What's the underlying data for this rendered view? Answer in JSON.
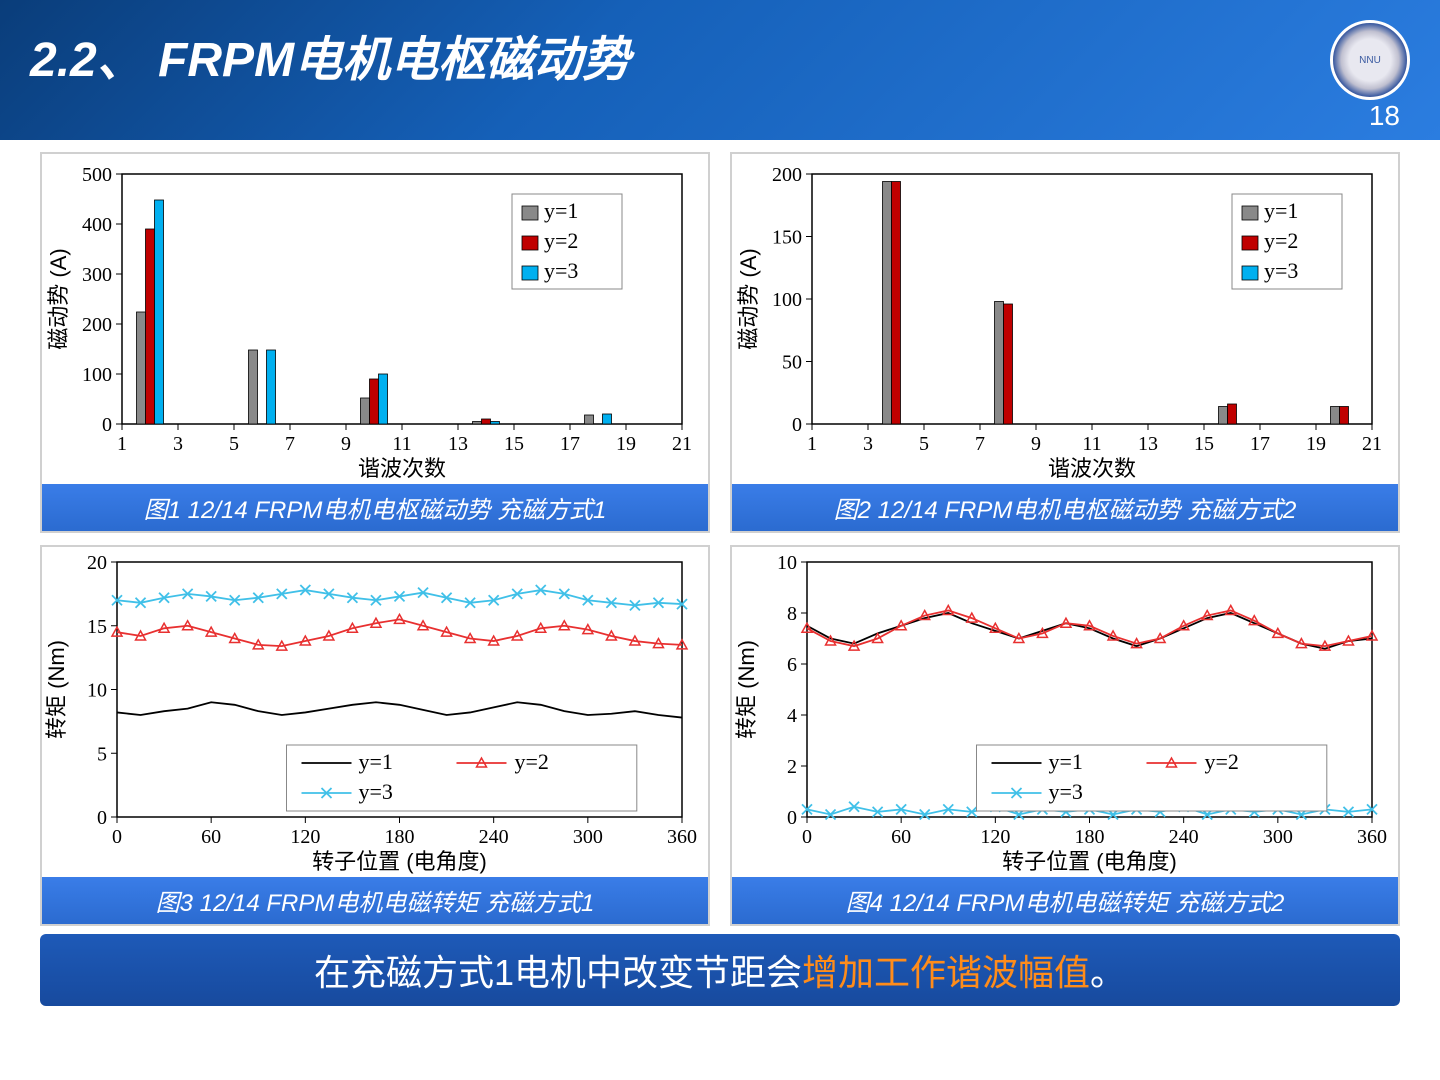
{
  "header": {
    "title": "2.2、 FRPM电机电枢磁动势",
    "pagenum": "18",
    "logo_text": "NNU"
  },
  "colors": {
    "gray": "#898989",
    "red": "#c00000",
    "blue": "#00b0f0",
    "line_black": "#000000",
    "line_red": "#e83030",
    "line_blue": "#40c0e8",
    "grid": "#000000",
    "bg": "#ffffff"
  },
  "chart1": {
    "type": "bar",
    "caption": "图1  12/14 FRPM电机电枢磁动势 充磁方式1",
    "ylabel": "磁动势 (A)",
    "xlabel": "谐波次数",
    "ylim": [
      0,
      500
    ],
    "ytick_step": 100,
    "xticks": [
      1,
      3,
      5,
      7,
      9,
      11,
      13,
      15,
      17,
      19,
      21
    ],
    "series": [
      "y=1",
      "y=2",
      "y=3"
    ],
    "categories": [
      2,
      6,
      10,
      14,
      18
    ],
    "values": {
      "y=1": [
        224,
        148,
        52,
        5,
        18
      ],
      "y=2": [
        390,
        0,
        90,
        10,
        0
      ],
      "y=3": [
        448,
        148,
        100,
        5,
        20
      ]
    }
  },
  "chart2": {
    "type": "bar",
    "caption": "图2  12/14 FRPM电机电枢磁动势 充磁方式2",
    "ylabel": "磁动势 (A)",
    "xlabel": "谐波次数",
    "ylim": [
      0,
      200
    ],
    "ytick_step": 50,
    "xticks": [
      1,
      3,
      5,
      7,
      9,
      11,
      13,
      15,
      17,
      19,
      21
    ],
    "series": [
      "y=1",
      "y=2",
      "y=3"
    ],
    "categories": [
      4,
      8,
      16,
      20
    ],
    "values": {
      "y=1": [
        194,
        98,
        14,
        14
      ],
      "y=2": [
        194,
        96,
        16,
        14
      ],
      "y=3": [
        0,
        0,
        0,
        0
      ]
    }
  },
  "chart3": {
    "type": "line",
    "caption": "图3  12/14 FRPM电机电磁转矩 充磁方式1",
    "ylabel": "转矩 (Nm)",
    "xlabel": "转子位置 (电角度)",
    "ylim": [
      0,
      20
    ],
    "ytick_step": 5,
    "xlim": [
      0,
      360
    ],
    "xtick_step": 60,
    "series": [
      "y=1",
      "y=2",
      "y=3"
    ],
    "x": [
      0,
      15,
      30,
      45,
      60,
      75,
      90,
      105,
      120,
      135,
      150,
      165,
      180,
      195,
      210,
      225,
      240,
      255,
      270,
      285,
      300,
      315,
      330,
      345,
      360
    ],
    "y": {
      "y=1": [
        8.2,
        8.0,
        8.3,
        8.5,
        9.0,
        8.8,
        8.3,
        8.0,
        8.2,
        8.5,
        8.8,
        9.0,
        8.8,
        8.4,
        8.0,
        8.2,
        8.6,
        9.0,
        8.8,
        8.3,
        8.0,
        8.1,
        8.3,
        8.0,
        7.8
      ],
      "y=2": [
        14.5,
        14.2,
        14.8,
        15.0,
        14.5,
        14.0,
        13.5,
        13.4,
        13.8,
        14.2,
        14.8,
        15.2,
        15.5,
        15.0,
        14.5,
        14.0,
        13.8,
        14.2,
        14.8,
        15.0,
        14.7,
        14.2,
        13.8,
        13.6,
        13.5
      ],
      "y=3": [
        17.0,
        16.8,
        17.2,
        17.5,
        17.3,
        17.0,
        17.2,
        17.5,
        17.8,
        17.5,
        17.2,
        17.0,
        17.3,
        17.6,
        17.2,
        16.8,
        17.0,
        17.5,
        17.8,
        17.5,
        17.0,
        16.8,
        16.6,
        16.8,
        16.7
      ]
    }
  },
  "chart4": {
    "type": "line",
    "caption": "图4  12/14 FRPM电机电磁转矩 充磁方式2",
    "ylabel": "转矩 (Nm)",
    "xlabel": "转子位置 (电角度)",
    "ylim": [
      0,
      10
    ],
    "ytick_step": 2,
    "xlim": [
      0,
      360
    ],
    "xtick_step": 60,
    "series": [
      "y=1",
      "y=2",
      "y=3"
    ],
    "x": [
      0,
      15,
      30,
      45,
      60,
      75,
      90,
      105,
      120,
      135,
      150,
      165,
      180,
      195,
      210,
      225,
      240,
      255,
      270,
      285,
      300,
      315,
      330,
      345,
      360
    ],
    "y": {
      "y=1": [
        7.5,
        7.0,
        6.8,
        7.2,
        7.5,
        7.8,
        8.0,
        7.6,
        7.3,
        7.0,
        7.3,
        7.6,
        7.4,
        7.0,
        6.7,
        7.0,
        7.4,
        7.8,
        8.0,
        7.6,
        7.2,
        6.8,
        6.6,
        6.9,
        7.0
      ],
      "y=2": [
        7.4,
        6.9,
        6.7,
        7.0,
        7.5,
        7.9,
        8.1,
        7.8,
        7.4,
        7.0,
        7.2,
        7.6,
        7.5,
        7.1,
        6.8,
        7.0,
        7.5,
        7.9,
        8.1,
        7.7,
        7.2,
        6.8,
        6.7,
        6.9,
        7.1
      ],
      "y=3": [
        0.3,
        0.1,
        0.4,
        0.2,
        0.3,
        0.1,
        0.3,
        0.2,
        0.4,
        0.1,
        0.3,
        0.2,
        0.3,
        0.1,
        0.3,
        0.2,
        0.4,
        0.1,
        0.3,
        0.2,
        0.3,
        0.1,
        0.3,
        0.2,
        0.3
      ]
    }
  },
  "footer": {
    "text_plain": "在充磁方式1电机中改变节距会",
    "text_highlight": "增加工作谐波幅值",
    "text_tail": "。"
  }
}
